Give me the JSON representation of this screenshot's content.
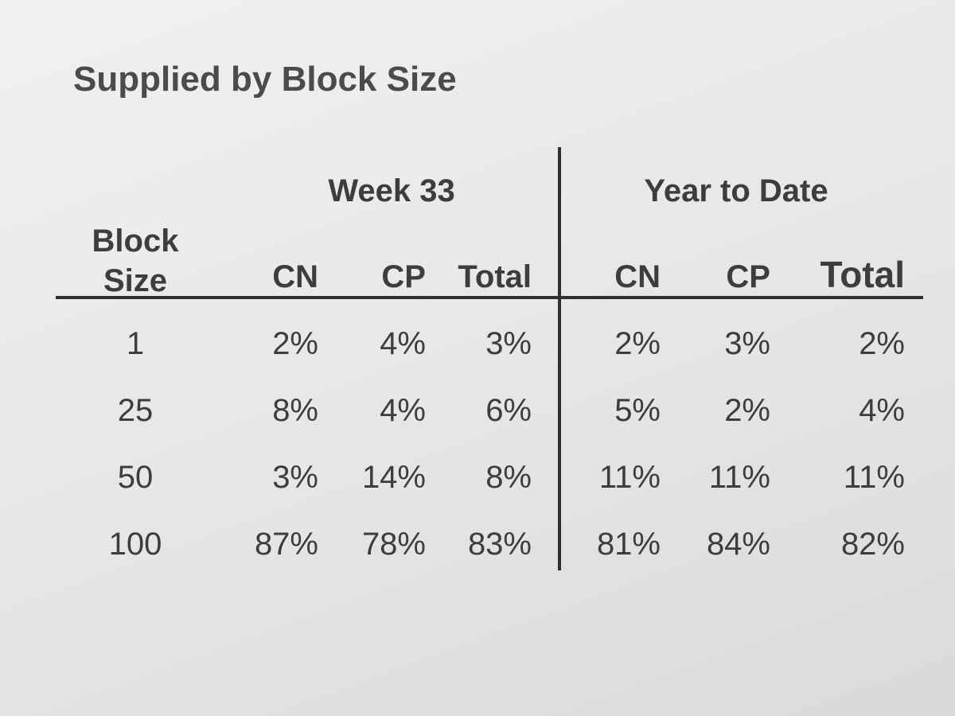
{
  "title": "Supplied by Block Size",
  "table": {
    "groups": [
      "Week 33",
      "Year to Date"
    ],
    "columns": [
      "Block Size",
      "CN",
      "CP",
      "Total",
      "CN",
      "CP",
      "Total"
    ],
    "rows": [
      [
        "1",
        "2%",
        "4%",
        "3%",
        "2%",
        "3%",
        "2%"
      ],
      [
        "25",
        "8%",
        "4%",
        "6%",
        "5%",
        "2%",
        "4%"
      ],
      [
        "50",
        "3%",
        "14%",
        "8%",
        "11%",
        "11%",
        "11%"
      ],
      [
        "100",
        "87%",
        "78%",
        "83%",
        "81%",
        "84%",
        "82%"
      ]
    ]
  }
}
